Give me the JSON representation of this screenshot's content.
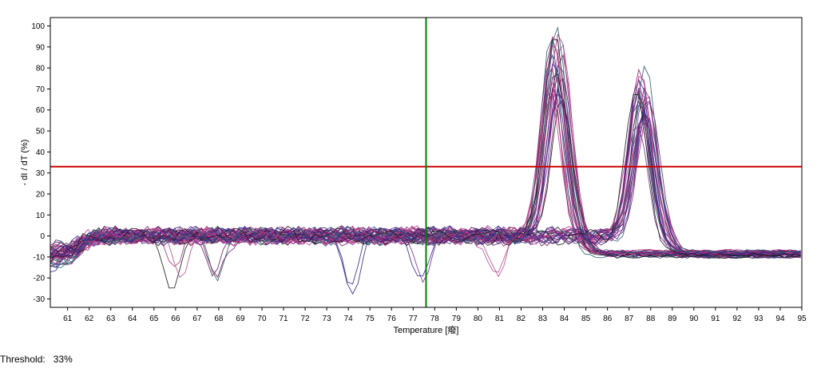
{
  "threshold_readout": {
    "label": "Threshold:",
    "value": "33%"
  },
  "chart_data": {
    "type": "line",
    "title": "",
    "xlabel": "Temperature [癈]",
    "ylabel": "- dI / dT (%)",
    "xlim": [
      60.2,
      95
    ],
    "ylim": [
      -34,
      104
    ],
    "xticks": [
      61,
      62,
      63,
      64,
      65,
      66,
      67,
      68,
      69,
      70,
      71,
      72,
      73,
      74,
      75,
      76,
      77,
      78,
      79,
      80,
      81,
      82,
      83,
      84,
      85,
      86,
      87,
      88,
      89,
      90,
      91,
      92,
      93,
      94,
      95
    ],
    "yticks": [
      -30,
      -20,
      -10,
      0,
      10,
      20,
      30,
      40,
      50,
      60,
      70,
      80,
      90,
      100
    ],
    "grid": false,
    "legend": "none",
    "threshold": {
      "value": 33,
      "color": "#cc0000"
    },
    "cursor": {
      "x": 77.6,
      "color": "#008000"
    },
    "palette": [
      "#8b1a6b",
      "#a0307f",
      "#6a1b5e",
      "#c04090",
      "#2a2a8a",
      "#3b2f8f",
      "#1a1a1a",
      "#2b5f6b",
      "#7a2a8a",
      "#b0508f"
    ],
    "series_summary": {
      "baseline": 0,
      "start_level": -10,
      "peaks": [
        {
          "center": 83.6,
          "max_height": 100,
          "min_height": 67
        },
        {
          "center": 87.6,
          "max_height": 82,
          "min_height": 53
        }
      ],
      "dips": [
        {
          "center": 66.1,
          "depth": -28
        },
        {
          "center": 67.8,
          "depth": -27
        },
        {
          "center": 74.0,
          "depth": -30
        },
        {
          "center": 77.3,
          "depth": -25
        },
        {
          "center": 81.0,
          "depth": -29
        },
        {
          "center": 84.5,
          "depth": -15
        }
      ],
      "tail_level": -8
    }
  }
}
